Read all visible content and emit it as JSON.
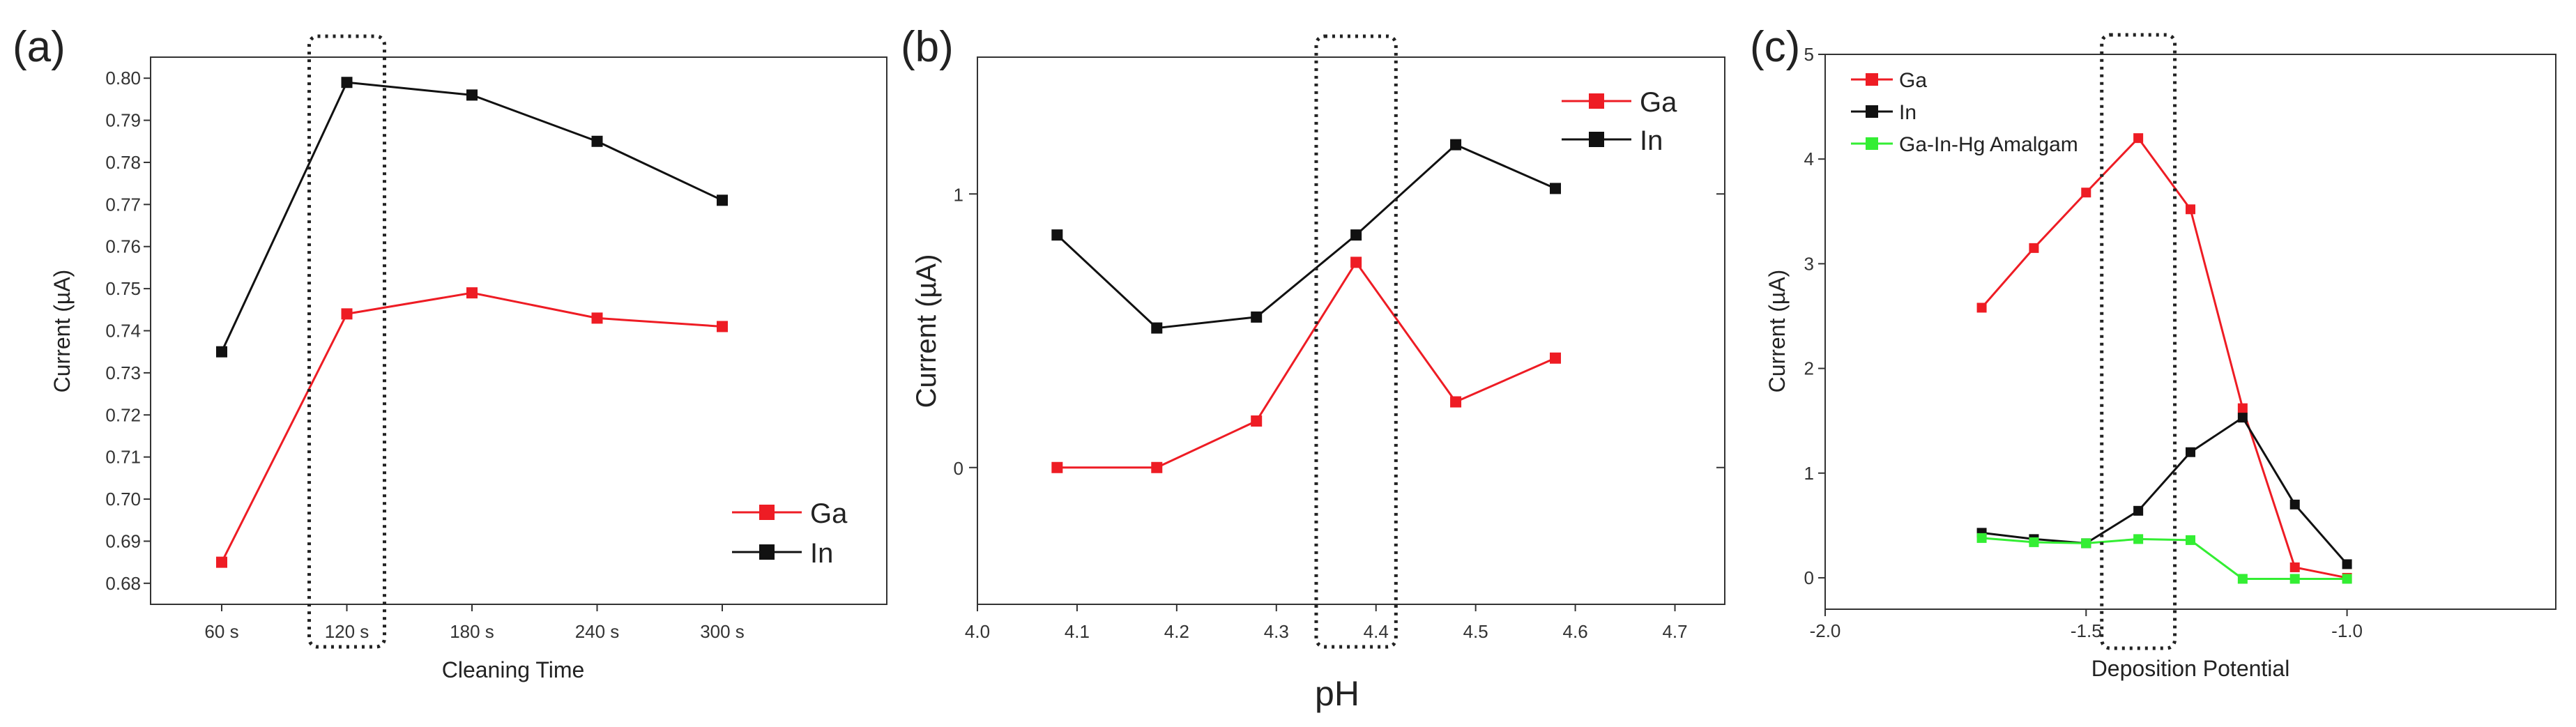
{
  "colors": {
    "Ga": "#ee1c24",
    "In": "#111111",
    "Ga-In-Hg Amalgam": "#33ee33",
    "axis": "#333333",
    "highlight": "#222222"
  },
  "chart_data": [
    {
      "panel": "(a)",
      "type": "line",
      "xlabel": "Cleaning Time",
      "ylabel": "Current (µA)",
      "categories": [
        "60 s",
        "120 s",
        "180 s",
        "240 s",
        "300 s"
      ],
      "ylim": [
        0.675,
        0.805
      ],
      "yticks": [
        "0.68",
        "0.69",
        "0.70",
        "0.71",
        "0.72",
        "0.73",
        "0.74",
        "0.75",
        "0.76",
        "0.77",
        "0.78",
        "0.79",
        "0.80"
      ],
      "series": [
        {
          "name": "Ga",
          "values": [
            0.685,
            0.744,
            0.749,
            0.743,
            0.741
          ]
        },
        {
          "name": "In",
          "values": [
            0.735,
            0.799,
            0.796,
            0.785,
            0.771
          ]
        }
      ],
      "highlight": "120 s",
      "legend": "bottom-right"
    },
    {
      "panel": "(b)",
      "type": "line",
      "xlabel": "pH",
      "ylabel": "Current (µA)",
      "xlim": [
        4.0,
        4.75
      ],
      "xticks": [
        "4.0",
        "4.1",
        "4.2",
        "4.3",
        "4.4",
        "4.5",
        "4.6",
        "4.7"
      ],
      "ylim": [
        -0.5,
        1.5
      ],
      "yticks": [
        "0",
        "1"
      ],
      "series": [
        {
          "name": "Ga",
          "x": [
            4.08,
            4.18,
            4.28,
            4.38,
            4.48,
            4.58
          ],
          "values": [
            0.0,
            0.0,
            0.17,
            0.75,
            0.24,
            0.4
          ]
        },
        {
          "name": "In",
          "x": [
            4.08,
            4.18,
            4.28,
            4.38,
            4.48,
            4.58
          ],
          "values": [
            0.85,
            0.51,
            0.55,
            0.85,
            1.18,
            1.02
          ]
        }
      ],
      "highlight": [
        4.34,
        4.42
      ],
      "legend": "top-right"
    },
    {
      "panel": "(c)",
      "type": "line",
      "xlabel": "Deposition Potential",
      "ylabel": "Current (µA)",
      "xlim": [
        -2.0,
        -0.6
      ],
      "xticks": [
        "-2.0",
        "-1.5",
        "-1.0"
      ],
      "ylim": [
        -0.3,
        5.0
      ],
      "yticks": [
        "0",
        "1",
        "2",
        "3",
        "4",
        "5"
      ],
      "series": [
        {
          "name": "Ga",
          "x": [
            -1.7,
            -1.6,
            -1.5,
            -1.4,
            -1.3,
            -1.2,
            -1.1,
            -1.0
          ],
          "values": [
            2.58,
            3.15,
            3.68,
            4.2,
            3.52,
            1.62,
            0.1,
            0.0
          ]
        },
        {
          "name": "In",
          "x": [
            -1.7,
            -1.6,
            -1.5,
            -1.4,
            -1.3,
            -1.2,
            -1.1,
            -1.0
          ],
          "values": [
            0.43,
            0.37,
            0.33,
            0.64,
            1.2,
            1.53,
            0.7,
            0.13
          ]
        },
        {
          "name": "Ga-In-Hg Amalgam",
          "x": [
            -1.7,
            -1.6,
            -1.5,
            -1.4,
            -1.3,
            -1.2,
            -1.1,
            -1.0
          ],
          "values": [
            0.38,
            0.34,
            0.33,
            0.37,
            0.36,
            -0.01,
            -0.01,
            -0.01
          ]
        }
      ],
      "highlight": [
        -1.47,
        -1.33
      ],
      "legend": "top-left"
    }
  ]
}
